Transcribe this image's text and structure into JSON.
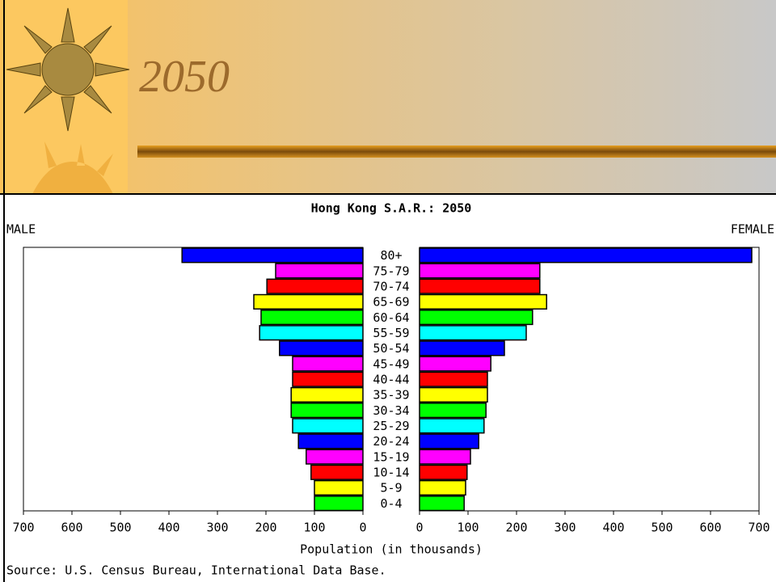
{
  "slide": {
    "title": "2050"
  },
  "chart_data": {
    "type": "pyramid",
    "title": "Hong Kong S.A.R.: 2050",
    "xlabel": "Population (in thousands)",
    "source": "Source: U.S. Census Bureau, International Data Base.",
    "categories": [
      "80+",
      "75-79",
      "70-74",
      "65-69",
      "60-64",
      "55-59",
      "50-54",
      "45-49",
      "40-44",
      "35-39",
      "30-34",
      "25-29",
      "20-24",
      "15-19",
      "10-14",
      "5-9",
      "0-4"
    ],
    "colors": [
      "#0000ff",
      "#ff00ff",
      "#ff0000",
      "#ffff00",
      "#00ff00",
      "#00ffff"
    ],
    "series": [
      {
        "name": "MALE",
        "values": [
          373,
          180,
          198,
          225,
          210,
          213,
          172,
          145,
          145,
          148,
          148,
          145,
          133,
          117,
          107,
          100,
          100
        ]
      },
      {
        "name": "FEMALE",
        "values": [
          685,
          248,
          248,
          262,
          233,
          220,
          175,
          147,
          140,
          140,
          137,
          133,
          122,
          105,
          98,
          95,
          92
        ]
      }
    ],
    "xlim": [
      0,
      700
    ],
    "xticks": [
      0,
      100,
      200,
      300,
      400,
      500,
      600,
      700
    ]
  }
}
